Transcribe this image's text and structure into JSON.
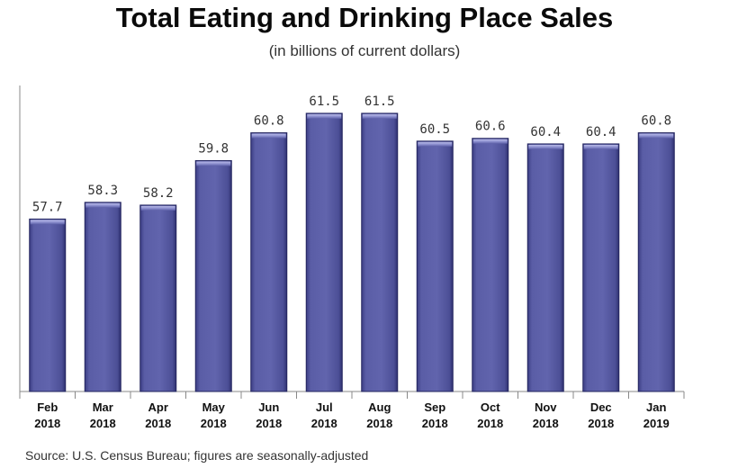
{
  "chart_data": {
    "type": "bar",
    "title": "Total Eating and Drinking Place Sales",
    "subtitle": "(in billions of current dollars)",
    "categories": [
      [
        "Feb",
        "2018"
      ],
      [
        "Mar",
        "2018"
      ],
      [
        "Apr",
        "2018"
      ],
      [
        "May",
        "2018"
      ],
      [
        "Jun",
        "2018"
      ],
      [
        "Jul",
        "2018"
      ],
      [
        "Aug",
        "2018"
      ],
      [
        "Sep",
        "2018"
      ],
      [
        "Oct",
        "2018"
      ],
      [
        "Nov",
        "2018"
      ],
      [
        "Dec",
        "2018"
      ],
      [
        "Jan",
        "2019"
      ]
    ],
    "values": [
      57.7,
      58.3,
      58.2,
      59.8,
      60.8,
      61.5,
      61.5,
      60.5,
      60.6,
      60.4,
      60.4,
      60.8
    ],
    "value_labels": [
      "57.7",
      "58.3",
      "58.2",
      "59.8",
      "60.8",
      "61.5",
      "61.5",
      "60.5",
      "60.6",
      "60.4",
      "60.4",
      "60.8"
    ],
    "ylim": [
      51.5,
      62.5
    ],
    "xlabel": "",
    "ylabel": "",
    "grid": false,
    "bar_color": "#5b5ea6",
    "source": "Source: U.S. Census Bureau; figures are seasonally-adjusted"
  }
}
